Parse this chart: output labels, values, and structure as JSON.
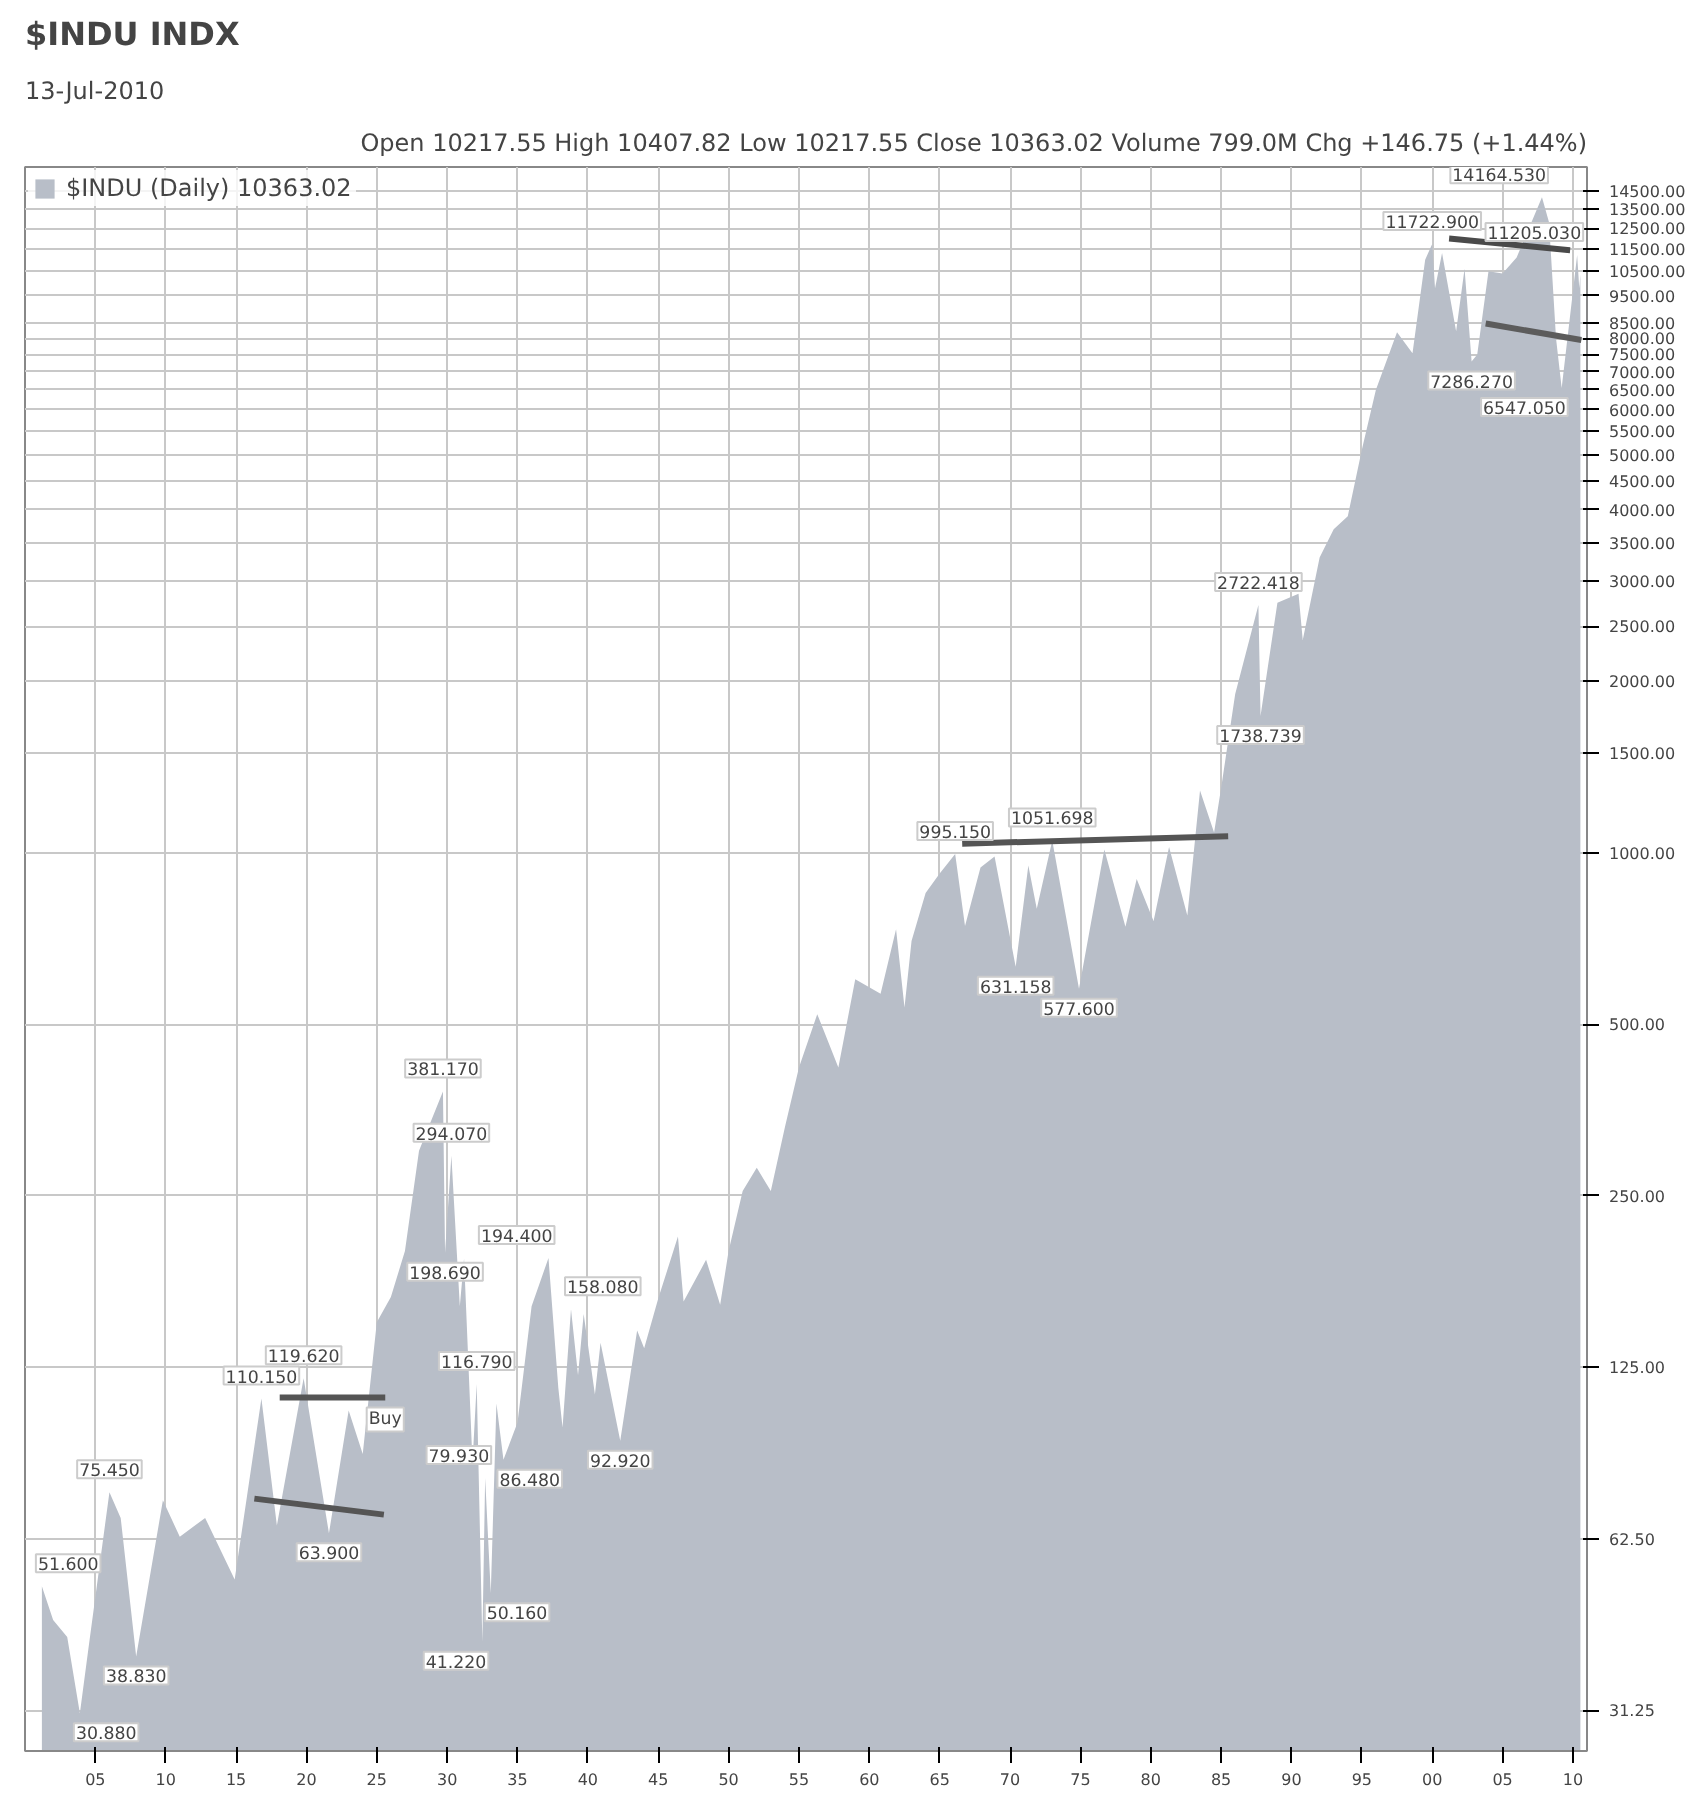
{
  "chart_data": {
    "type": "area",
    "title": "$INDU INDX",
    "subtitle": "13-Jul-2010",
    "log": "y",
    "grid": true,
    "legend": "top left",
    "xlim": [
      1900,
      2011
    ],
    "ylim": [
      26.5,
      16000
    ],
    "xticks": [
      {
        "value": 1905,
        "label": "05"
      },
      {
        "value": 1910,
        "label": "10"
      },
      {
        "value": 1915,
        "label": "15"
      },
      {
        "value": 1920,
        "label": "20"
      },
      {
        "value": 1925,
        "label": "25"
      },
      {
        "value": 1930,
        "label": "30"
      },
      {
        "value": 1935,
        "label": "35"
      },
      {
        "value": 1940,
        "label": "40"
      },
      {
        "value": 1945,
        "label": "45"
      },
      {
        "value": 1950,
        "label": "50"
      },
      {
        "value": 1955,
        "label": "55"
      },
      {
        "value": 1960,
        "label": "60"
      },
      {
        "value": 1965,
        "label": "65"
      },
      {
        "value": 1970,
        "label": "70"
      },
      {
        "value": 1975,
        "label": "75"
      },
      {
        "value": 1980,
        "label": "80"
      },
      {
        "value": 1985,
        "label": "85"
      },
      {
        "value": 1990,
        "label": "90"
      },
      {
        "value": 1995,
        "label": "95"
      },
      {
        "value": 2000,
        "label": "00"
      },
      {
        "value": 2005,
        "label": "05"
      },
      {
        "value": 2010,
        "label": "10"
      }
    ],
    "yticks": [
      {
        "value": 31.25,
        "label": "31.25"
      },
      {
        "value": 62.5,
        "label": "62.50"
      },
      {
        "value": 125,
        "label": "125.00"
      },
      {
        "value": 250,
        "label": "250.00"
      },
      {
        "value": 500,
        "label": "500.00"
      },
      {
        "value": 1000,
        "label": "1000.00"
      },
      {
        "value": 1500,
        "label": "1500.00"
      },
      {
        "value": 2000,
        "label": "2000.00"
      },
      {
        "value": 2500,
        "label": "2500.00"
      },
      {
        "value": 3000,
        "label": "3000.00"
      },
      {
        "value": 3500,
        "label": "3500.00"
      },
      {
        "value": 4000,
        "label": "4000.00"
      },
      {
        "value": 4500,
        "label": "4500.00"
      },
      {
        "value": 5000,
        "label": "5000.00"
      },
      {
        "value": 5500,
        "label": "5500.00"
      },
      {
        "value": 6000,
        "label": "6000.00"
      },
      {
        "value": 6500,
        "label": "6500.00"
      },
      {
        "value": 7000,
        "label": "7000.00"
      },
      {
        "value": 7500,
        "label": "7500.00"
      },
      {
        "value": 8000,
        "label": "8000.00"
      },
      {
        "value": 8500,
        "label": "8500.00"
      },
      {
        "value": 9500,
        "label": "9500.00"
      },
      {
        "value": 10500,
        "label": "10500.00"
      },
      {
        "value": 11500,
        "label": "11500.00"
      },
      {
        "value": 12500,
        "label": "12500.00"
      },
      {
        "value": 13500,
        "label": "13500.00"
      },
      {
        "value": 14500,
        "label": "14500.00"
      }
    ],
    "series": [
      {
        "name": "$INDU (Daily) 10363.02",
        "color": "#b8bec8",
        "x": [
          1901.2,
          1902,
          1903,
          1903.9,
          1904.5,
          1906.0,
          1906.8,
          1907.9,
          1909.8,
          1911,
          1912.8,
          1914.9,
          1916.8,
          1917.9,
          1919.8,
          1921.6,
          1923,
          1924,
          1925,
          1926,
          1927,
          1928,
          1929.7,
          1929.85,
          1930.3,
          1930.9,
          1931.2,
          1931.8,
          1932.1,
          1932.5,
          1932.7,
          1933.1,
          1933.5,
          1934,
          1935.0,
          1936,
          1937.2,
          1937.9,
          1938.2,
          1938.8,
          1939.3,
          1939.7,
          1940.5,
          1940.9,
          1942.3,
          1943.5,
          1944,
          1945,
          1946.4,
          1946.8,
          1948.4,
          1949.4,
          1950,
          1951,
          1952,
          1953,
          1954,
          1955,
          1956.3,
          1957.8,
          1959,
          1960.8,
          1961.9,
          1962.5,
          1963,
          1964,
          1965,
          1966.1,
          1966.8,
          1967.9,
          1968.9,
          1970.4,
          1971.3,
          1971.9,
          1973.0,
          1974.9,
          1976.7,
          1978.2,
          1979,
          1980.2,
          1981.3,
          1982.6,
          1983.5,
          1984.5,
          1985,
          1986,
          1987.65,
          1987.8,
          1989,
          1990.5,
          1990.8,
          1992,
          1993,
          1994,
          1995,
          1996,
          1997.5,
          1998.6,
          1999.5,
          2000.0,
          2000.2,
          2000.7,
          2001.7,
          2002.3,
          2002.8,
          2003.2,
          2004,
          2005,
          2006,
          2007.8,
          2008.3,
          2008.8,
          2009.2,
          2010.3,
          2010.45,
          2010.53
        ],
        "values": [
          51.6,
          45,
          42,
          30.88,
          40,
          75.45,
          68,
          38.83,
          73,
          63,
          68,
          53,
          110.15,
          65.95,
          119.62,
          63.9,
          105,
          88,
          150,
          166,
          200,
          300,
          381.17,
          198.69,
          294.07,
          160,
          194,
          85,
          116.79,
          41.22,
          79.93,
          50.16,
          108,
          86,
          100,
          160,
          194.4,
          115,
          98,
          158.08,
          121,
          155,
          112,
          138,
          92.92,
          145,
          135,
          165,
          212,
          163,
          193,
          161,
          200,
          255,
          280,
          255,
          330,
          420,
          521,
          420,
          600,
          566,
          734,
          535,
          700,
          850,
          920,
          995.15,
          744,
          943,
          985,
          631.158,
          950,
          798,
          1051.698,
          577.6,
          1014,
          742,
          900,
          759,
          1024,
          776,
          1287,
          1086,
          1300,
          1900,
          2722.418,
          1738.739,
          2750,
          2850,
          2365,
          3300,
          3700,
          3900,
          5100,
          6500,
          8200,
          7539,
          11000,
          11722.9,
          9800,
          11300,
          8236,
          10600,
          7286.27,
          7500,
          10500,
          10400,
          11100,
          14164.53,
          12800,
          8000,
          6547.05,
          11205.03,
          9800,
          10363.02
        ]
      },
      {
        "type": "line",
        "color": "#555555",
        "x": [
          1916.3,
          1925.5
        ],
        "values": [
          73.5,
          68.9
        ]
      },
      {
        "type": "line",
        "color": "#555555",
        "x": [
          1918.1,
          1925.6
        ],
        "values": [
          110.6,
          110.6
        ]
      },
      {
        "type": "line",
        "color": "#555555",
        "x": [
          1966.6,
          1985.5
        ],
        "values": [
          1038,
          1070
        ]
      },
      {
        "type": "line",
        "color": "#4a4a4a",
        "x": [
          2001.2,
          2009.8
        ],
        "values": [
          11980,
          11430
        ]
      },
      {
        "type": "line",
        "color": "#5c5c5c",
        "x": [
          2003.8,
          2010.6
        ],
        "values": [
          8500,
          7950
        ]
      }
    ],
    "annotations": [
      "Open 10217.55 High 10407.82 Low 10217.55 Close 10363.02 Volume 799.0M Chg +146.75 (+1.44%)",
      {
        "text": "51.600",
        "x": 1901.2,
        "y": 51.6
      },
      {
        "text": "30.880",
        "x": 1903.9,
        "y": 30.88
      },
      {
        "text": "75.450",
        "x": 1906.0,
        "y": 75.45
      },
      {
        "text": "38.830",
        "x": 1907.9,
        "y": 38.83
      },
      {
        "text": "110.150",
        "x": 1916.8,
        "y": 110.15
      },
      {
        "text": "119.620",
        "x": 1919.8,
        "y": 119.62
      },
      {
        "text": "63.900",
        "x": 1921.6,
        "y": 63.9
      },
      {
        "text": "381.170",
        "x": 1929.7,
        "y": 381.17
      },
      {
        "text": "198.690",
        "x": 1929.85,
        "y": 198.69
      },
      {
        "text": "294.070",
        "x": 1930.3,
        "y": 294.07
      },
      {
        "text": "116.790",
        "x": 1932.1,
        "y": 116.79
      },
      {
        "text": "41.220",
        "x": 1932.5,
        "y": 41.22
      },
      {
        "text": "79.930",
        "x": 1932.7,
        "y": 79.93
      },
      {
        "text": "50.160",
        "x": 1933.1,
        "y": 50.16
      },
      {
        "text": "86.480",
        "x": 1934,
        "y": 86
      },
      {
        "text": "194.400",
        "x": 1937.2,
        "y": 194.4
      },
      {
        "text": "158.080",
        "x": 1938.8,
        "y": 158.08
      },
      {
        "text": "92.920",
        "x": 1942.3,
        "y": 92.92
      },
      {
        "text": "995.150",
        "x": 1966.1,
        "y": 995.15
      },
      {
        "text": "631.158",
        "x": 1970.4,
        "y": 631.158
      },
      {
        "text": "1051.698",
        "x": 1973.0,
        "y": 1051.698
      },
      {
        "text": "577.600",
        "x": 1974.9,
        "y": 577.6
      },
      {
        "text": "2722.418",
        "x": 1987.65,
        "y": 2722.418
      },
      {
        "text": "1738.739",
        "x": 1987.8,
        "y": 1738.739
      },
      {
        "text": "11722.900",
        "x": 2000.0,
        "y": 11722.9
      },
      {
        "text": "7286.270",
        "x": 2002.8,
        "y": 7286.27
      },
      {
        "text": "14164.530",
        "x": 2007.8,
        "y": 14164.53
      },
      {
        "text": "6547.050",
        "x": 2009.2,
        "y": 6547.05
      },
      {
        "text": "11205.030",
        "x": 2010.3,
        "y": 11205.03
      },
      {
        "text": "Buy",
        "x": 1925.6,
        "y": 110.6
      }
    ]
  }
}
